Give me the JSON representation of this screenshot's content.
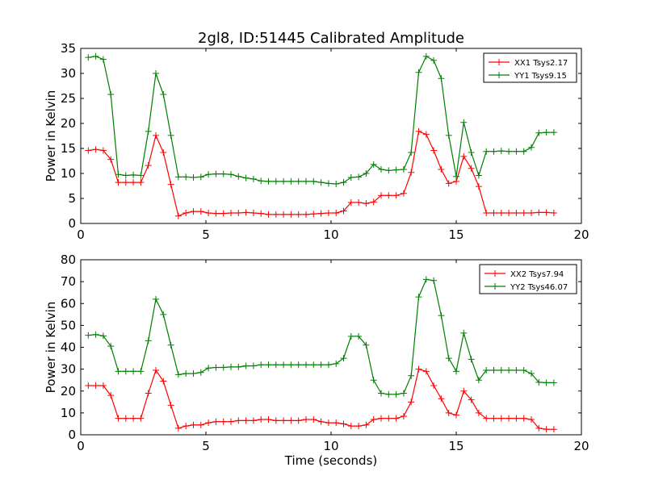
{
  "title": "2gl8, ID:51445 Calibrated Amplitude",
  "chart_data": [
    {
      "type": "line",
      "title": "2gl8, ID:51445 Calibrated Amplitude",
      "xlabel": "",
      "ylabel": "Power in Kelvin",
      "xlim": [
        0,
        20
      ],
      "ylim": [
        0,
        35
      ],
      "xticks": [
        "0",
        "5",
        "10",
        "15",
        "20"
      ],
      "yticks": [
        "0",
        "5",
        "10",
        "15",
        "20",
        "25",
        "30",
        "35"
      ],
      "grid": false,
      "legend_position": "top-right",
      "x": [
        0.3,
        0.6,
        0.9,
        1.2,
        1.5,
        1.8,
        2.1,
        2.4,
        2.7,
        3.0,
        3.3,
        3.6,
        3.9,
        4.2,
        4.5,
        4.8,
        5.1,
        5.4,
        5.7,
        6.0,
        6.3,
        6.6,
        6.9,
        7.2,
        7.5,
        7.8,
        8.1,
        8.4,
        8.7,
        9.0,
        9.3,
        9.6,
        9.9,
        10.2,
        10.5,
        10.8,
        11.1,
        11.4,
        11.7,
        12.0,
        12.3,
        12.6,
        12.9,
        13.2,
        13.5,
        13.8,
        14.1,
        14.4,
        14.7,
        15.0,
        15.3,
        15.6,
        15.9,
        16.2,
        16.5,
        16.8,
        17.1,
        17.4,
        17.7,
        18.0,
        18.3,
        18.6,
        18.9
      ],
      "series": [
        {
          "name": "XX1 Tsys2.17",
          "color": "#ff0000",
          "values": [
            14.6,
            14.8,
            14.6,
            12.8,
            8.2,
            8.2,
            8.2,
            8.2,
            11.6,
            17.6,
            14.2,
            7.8,
            1.5,
            2.1,
            2.4,
            2.4,
            2.1,
            2.0,
            2.0,
            2.1,
            2.1,
            2.2,
            2.1,
            2.0,
            1.8,
            1.8,
            1.8,
            1.8,
            1.8,
            1.8,
            1.9,
            2.0,
            2.1,
            2.1,
            2.5,
            4.2,
            4.2,
            4.0,
            4.3,
            5.6,
            5.6,
            5.6,
            6.0,
            10.2,
            18.4,
            17.8,
            14.6,
            10.8,
            8.0,
            8.4,
            13.4,
            11.0,
            7.4,
            2.1,
            2.1,
            2.1,
            2.1,
            2.1,
            2.1,
            2.1,
            2.2,
            2.2,
            2.1
          ]
        },
        {
          "name": "YY1 Tsys9.15",
          "color": "#007f00",
          "values": [
            33.2,
            33.4,
            32.8,
            25.8,
            9.8,
            9.6,
            9.7,
            9.6,
            18.4,
            30.0,
            25.8,
            17.6,
            9.3,
            9.3,
            9.2,
            9.3,
            9.8,
            9.9,
            9.9,
            9.8,
            9.4,
            9.1,
            8.9,
            8.5,
            8.4,
            8.4,
            8.4,
            8.4,
            8.4,
            8.4,
            8.4,
            8.2,
            8.0,
            7.9,
            8.2,
            9.2,
            9.3,
            10.0,
            11.8,
            10.8,
            10.6,
            10.7,
            10.8,
            14.2,
            30.2,
            33.4,
            32.6,
            29.0,
            17.6,
            9.4,
            20.2,
            14.2,
            9.6,
            14.4,
            14.4,
            14.5,
            14.4,
            14.4,
            14.4,
            15.2,
            18.1,
            18.2,
            18.2
          ]
        }
      ]
    },
    {
      "type": "line",
      "title": "",
      "xlabel": "Time (seconds)",
      "ylabel": "Power in Kelvin",
      "xlim": [
        0,
        20
      ],
      "ylim": [
        0,
        80
      ],
      "xticks": [
        "0",
        "5",
        "10",
        "15",
        "20"
      ],
      "yticks": [
        "0",
        "10",
        "20",
        "30",
        "40",
        "50",
        "60",
        "70",
        "80"
      ],
      "grid": false,
      "legend_position": "top-right",
      "x": [
        0.3,
        0.6,
        0.9,
        1.2,
        1.5,
        1.8,
        2.1,
        2.4,
        2.7,
        3.0,
        3.3,
        3.6,
        3.9,
        4.2,
        4.5,
        4.8,
        5.1,
        5.4,
        5.7,
        6.0,
        6.3,
        6.6,
        6.9,
        7.2,
        7.5,
        7.8,
        8.1,
        8.4,
        8.7,
        9.0,
        9.3,
        9.6,
        9.9,
        10.2,
        10.5,
        10.8,
        11.1,
        11.4,
        11.7,
        12.0,
        12.3,
        12.6,
        12.9,
        13.2,
        13.5,
        13.8,
        14.1,
        14.4,
        14.7,
        15.0,
        15.3,
        15.6,
        15.9,
        16.2,
        16.5,
        16.8,
        17.1,
        17.4,
        17.7,
        18.0,
        18.3,
        18.6,
        18.9
      ],
      "series": [
        {
          "name": "XX2 Tsys7.94",
          "color": "#ff0000",
          "values": [
            22.5,
            22.5,
            22.5,
            18.0,
            7.5,
            7.5,
            7.5,
            7.5,
            19.0,
            29.5,
            24.5,
            13.5,
            3.0,
            4.0,
            4.5,
            4.5,
            5.5,
            6.0,
            6.0,
            6.0,
            6.5,
            6.5,
            6.5,
            7.0,
            7.0,
            6.5,
            6.5,
            6.5,
            6.5,
            7.0,
            7.0,
            6.0,
            5.5,
            5.5,
            5.0,
            4.0,
            4.0,
            4.5,
            7.0,
            7.5,
            7.5,
            7.5,
            8.5,
            15.0,
            30.0,
            29.0,
            22.5,
            16.5,
            10.0,
            9.0,
            20.0,
            16.0,
            10.0,
            7.5,
            7.5,
            7.5,
            7.5,
            7.5,
            7.5,
            7.0,
            3.0,
            2.5,
            2.5
          ]
        },
        {
          "name": "YY2 Tsys46.07",
          "color": "#007f00",
          "values": [
            45.5,
            45.8,
            45.2,
            40.5,
            29.0,
            29.0,
            29.0,
            29.0,
            43.0,
            62.0,
            55.0,
            41.0,
            27.5,
            28.0,
            28.0,
            28.5,
            30.5,
            30.8,
            30.8,
            31.0,
            31.0,
            31.5,
            31.5,
            32.0,
            32.0,
            32.0,
            32.0,
            32.0,
            32.0,
            32.0,
            32.0,
            32.0,
            32.0,
            32.5,
            35.0,
            45.0,
            45.0,
            41.0,
            25.0,
            19.0,
            18.5,
            18.5,
            19.0,
            27.0,
            63.0,
            71.0,
            70.5,
            54.5,
            35.0,
            29.0,
            46.5,
            34.5,
            25.0,
            29.5,
            29.5,
            29.5,
            29.5,
            29.5,
            29.5,
            28.0,
            24.0,
            23.8,
            23.8
          ]
        }
      ]
    }
  ]
}
